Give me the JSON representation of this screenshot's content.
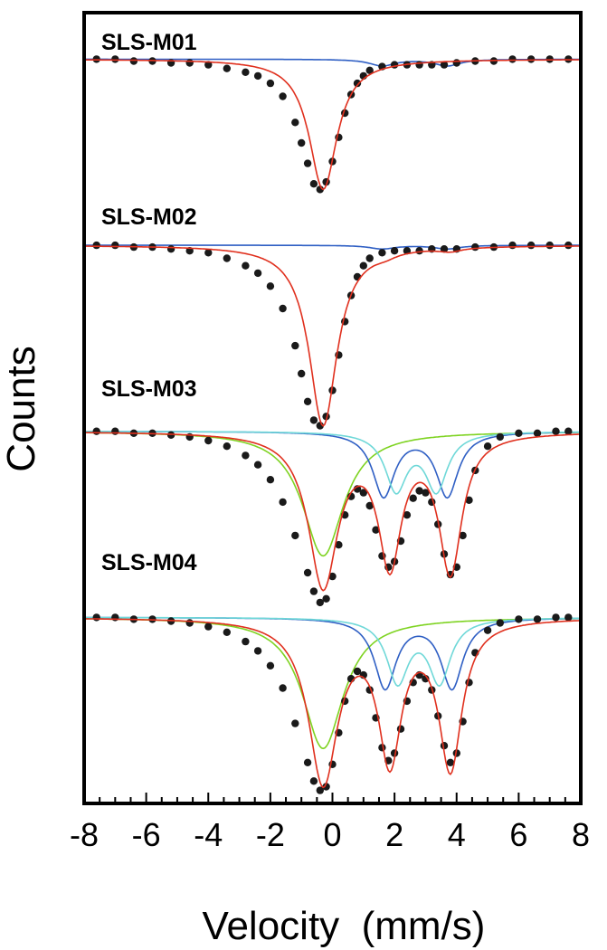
{
  "chart_data": {
    "type": "line",
    "xlabel": "Velocity  (mm/s)",
    "ylabel": "Counts",
    "xlim": [
      -8,
      8
    ],
    "xticks": [
      "-8",
      "-6",
      "-4",
      "-2",
      "0",
      "2",
      "4",
      "6",
      "8"
    ],
    "ylim": [
      0,
      4.25
    ],
    "grid": false,
    "legend": "none",
    "colors": {
      "data": "#1a1a1a",
      "fit": "#e0301e",
      "doublet_blue": "#2f5fc4",
      "doublet_cyan": "#6fd8d8",
      "singlet_green": "#7ed321"
    },
    "spectra": [
      {
        "label": "SLS-M01",
        "baseline": 4.0,
        "total_dip": 0.7,
        "data_x": [
          -7.6,
          -7.0,
          -6.4,
          -5.8,
          -5.2,
          -4.6,
          -4.0,
          -3.4,
          -2.8,
          -2.4,
          -2.0,
          -1.6,
          -1.2,
          -1.0,
          -0.8,
          -0.6,
          -0.4,
          -0.2,
          0.0,
          0.2,
          0.4,
          0.6,
          0.8,
          1.0,
          1.2,
          1.6,
          2.0,
          2.4,
          2.8,
          3.2,
          3.6,
          4.0,
          4.6,
          5.2,
          5.8,
          6.4,
          7.0,
          7.6
        ],
        "data_y": [
          4.0,
          4.0,
          3.99,
          3.99,
          3.98,
          3.98,
          3.97,
          3.95,
          3.93,
          3.91,
          3.87,
          3.8,
          3.66,
          3.55,
          3.44,
          3.33,
          3.3,
          3.34,
          3.45,
          3.58,
          3.71,
          3.81,
          3.87,
          3.91,
          3.94,
          3.96,
          3.97,
          3.97,
          3.97,
          3.97,
          3.97,
          3.98,
          3.99,
          3.99,
          4.0,
          4.0,
          4.0,
          4.0
        ]
      },
      {
        "label": "SLS-M02",
        "baseline": 3.0,
        "total_dip": 0.97,
        "data_x": [
          -7.6,
          -7.0,
          -6.4,
          -5.8,
          -5.2,
          -4.6,
          -4.0,
          -3.4,
          -2.8,
          -2.4,
          -2.0,
          -1.6,
          -1.2,
          -1.0,
          -0.8,
          -0.6,
          -0.4,
          -0.2,
          0.0,
          0.2,
          0.4,
          0.6,
          0.8,
          1.0,
          1.2,
          1.6,
          2.0,
          2.4,
          2.8,
          3.2,
          3.6,
          4.0,
          4.6,
          5.2,
          5.8,
          6.4,
          7.0,
          7.6
        ],
        "data_y": [
          3.0,
          3.0,
          2.99,
          2.99,
          2.98,
          2.97,
          2.96,
          2.93,
          2.89,
          2.85,
          2.78,
          2.66,
          2.46,
          2.31,
          2.16,
          2.06,
          2.03,
          2.08,
          2.22,
          2.41,
          2.59,
          2.73,
          2.83,
          2.89,
          2.93,
          2.96,
          2.97,
          2.97,
          2.97,
          2.98,
          2.98,
          2.98,
          2.99,
          2.99,
          3.0,
          3.0,
          3.0,
          3.0
        ]
      },
      {
        "label": "SLS-M03",
        "baseline": 2.0,
        "total_dip": 0.93,
        "data_x": [
          -7.6,
          -7.0,
          -6.4,
          -5.8,
          -5.2,
          -4.6,
          -4.0,
          -3.4,
          -2.8,
          -2.4,
          -2.0,
          -1.6,
          -1.2,
          -0.8,
          -0.6,
          -0.4,
          -0.2,
          0.0,
          0.2,
          0.4,
          0.6,
          0.8,
          1.0,
          1.2,
          1.4,
          1.6,
          1.8,
          2.0,
          2.2,
          2.4,
          2.6,
          2.8,
          3.0,
          3.2,
          3.4,
          3.6,
          3.8,
          4.0,
          4.2,
          4.4,
          4.6,
          5.0,
          5.4,
          6.0,
          6.6,
          7.2,
          7.6
        ],
        "data_y": [
          2.0,
          2.0,
          1.99,
          1.99,
          1.98,
          1.97,
          1.95,
          1.92,
          1.87,
          1.82,
          1.74,
          1.62,
          1.44,
          1.24,
          1.14,
          1.08,
          1.1,
          1.22,
          1.39,
          1.55,
          1.65,
          1.69,
          1.67,
          1.6,
          1.47,
          1.33,
          1.27,
          1.3,
          1.41,
          1.55,
          1.64,
          1.68,
          1.67,
          1.62,
          1.5,
          1.34,
          1.23,
          1.27,
          1.44,
          1.63,
          1.79,
          1.92,
          1.97,
          1.99,
          1.99,
          2.0,
          2.0
        ]
      },
      {
        "label": "SLS-M04",
        "baseline": 1.0,
        "total_dip": 0.94,
        "data_x": [
          -7.6,
          -7.0,
          -6.4,
          -5.8,
          -5.2,
          -4.6,
          -4.0,
          -3.4,
          -2.8,
          -2.4,
          -2.0,
          -1.6,
          -1.2,
          -0.8,
          -0.6,
          -0.4,
          -0.2,
          0.0,
          0.2,
          0.4,
          0.6,
          0.8,
          1.0,
          1.2,
          1.4,
          1.6,
          1.8,
          2.0,
          2.2,
          2.4,
          2.6,
          2.8,
          3.0,
          3.2,
          3.4,
          3.6,
          3.8,
          4.0,
          4.2,
          4.4,
          4.6,
          5.0,
          5.4,
          6.0,
          6.6,
          7.2,
          7.6
        ],
        "data_y": [
          1.0,
          1.0,
          0.99,
          0.99,
          0.98,
          0.97,
          0.95,
          0.92,
          0.87,
          0.82,
          0.74,
          0.62,
          0.43,
          0.22,
          0.12,
          0.07,
          0.09,
          0.21,
          0.38,
          0.55,
          0.67,
          0.71,
          0.69,
          0.61,
          0.46,
          0.3,
          0.23,
          0.27,
          0.4,
          0.55,
          0.65,
          0.69,
          0.67,
          0.61,
          0.47,
          0.31,
          0.22,
          0.27,
          0.44,
          0.65,
          0.81,
          0.93,
          0.97,
          0.99,
          0.99,
          1.0,
          1.0
        ]
      }
    ]
  }
}
